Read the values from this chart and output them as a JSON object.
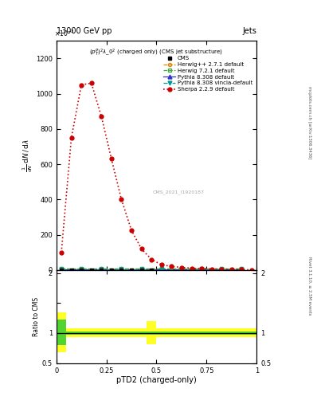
{
  "title_top": "13000 GeV pp",
  "title_right": "Jets",
  "subtitle": "$(p_T^P)^2\\lambda\\_0^2$ (charged only) (CMS jet substructure)",
  "watermark": "CMS_2021_I1920187",
  "ylabel_ratio": "Ratio to CMS",
  "xlabel": "pTD2 (charged-only)",
  "ylim_main": [
    0,
    1300
  ],
  "ylim_ratio": [
    0.5,
    2.05
  ],
  "xlim": [
    0.0,
    1.0
  ],
  "sherpa_x": [
    0.025,
    0.075,
    0.125,
    0.175,
    0.225,
    0.275,
    0.325,
    0.375,
    0.425,
    0.475,
    0.525,
    0.575,
    0.625,
    0.675,
    0.725,
    0.775,
    0.825,
    0.875,
    0.925,
    0.975
  ],
  "sherpa_y": [
    100,
    750,
    1050,
    1060,
    870,
    630,
    400,
    225,
    120,
    60,
    30,
    20,
    15,
    10,
    8,
    6,
    4,
    3,
    2,
    1
  ],
  "sherpa_color": "#cc0000",
  "sherpa_label": "Sherpa 2.2.9 default",
  "herwig_x": [
    0.025,
    0.125,
    0.225,
    0.325,
    0.425,
    0.525,
    0.625,
    0.725,
    0.825,
    0.925
  ],
  "herwig_y": [
    8,
    8,
    8,
    8,
    8,
    8,
    8,
    8,
    8,
    8
  ],
  "herwig_color": "#dd8800",
  "herwig_label": "Herwig++ 2.7.1 default",
  "herwig7_x": [
    0.025,
    0.125,
    0.225,
    0.325,
    0.425,
    0.525,
    0.625,
    0.725,
    0.825,
    0.925
  ],
  "herwig7_y": [
    8,
    8,
    8,
    8,
    8,
    8,
    8,
    8,
    8,
    8
  ],
  "herwig7_color": "#44aa44",
  "herwig7_label": "Herwig 7.2.1 default",
  "pythia_x": [
    0.025,
    0.125,
    0.225,
    0.325,
    0.425,
    0.525,
    0.625,
    0.725,
    0.825,
    0.925
  ],
  "pythia_y": [
    5,
    5,
    5,
    5,
    5,
    5,
    5,
    5,
    5,
    5
  ],
  "pythia_color": "#3333cc",
  "pythia_label": "Pythia 8.308 default",
  "pythia_v_x": [
    0.025,
    0.125,
    0.225,
    0.325,
    0.425,
    0.525,
    0.625,
    0.725,
    0.825,
    0.925
  ],
  "pythia_v_y": [
    5,
    5,
    5,
    5,
    5,
    5,
    5,
    5,
    5,
    5
  ],
  "pythia_v_color": "#009999",
  "pythia_v_label": "Pythia 8.308 vincia-default",
  "cms_x": [
    0.025,
    0.075,
    0.125,
    0.175,
    0.225,
    0.275,
    0.325,
    0.375,
    0.425,
    0.475
  ],
  "cms_y": [
    0,
    0,
    0,
    0,
    0,
    0,
    0,
    0,
    0,
    0
  ],
  "cms_color": "#000000",
  "cms_label": "CMS",
  "ratio_band_yellow_x": [
    0.0,
    0.05,
    0.1,
    0.15,
    0.2,
    0.25,
    0.3,
    0.35,
    0.4,
    0.45,
    0.5,
    0.55,
    0.6,
    0.65,
    0.7,
    0.75,
    0.8,
    0.85,
    0.9,
    0.95,
    1.0
  ],
  "ratio_band_yellow_lo": [
    0.68,
    0.68,
    0.93,
    0.93,
    0.93,
    0.93,
    0.93,
    0.93,
    0.93,
    0.93,
    0.82,
    0.93,
    0.93,
    0.93,
    0.93,
    0.93,
    0.93,
    0.93,
    0.93,
    0.93,
    0.93
  ],
  "ratio_band_yellow_hi": [
    1.35,
    1.35,
    1.08,
    1.08,
    1.08,
    1.08,
    1.08,
    1.08,
    1.08,
    1.08,
    1.2,
    1.08,
    1.08,
    1.08,
    1.08,
    1.08,
    1.08,
    1.08,
    1.08,
    1.08,
    1.08
  ],
  "ratio_band_green_x": [
    0.0,
    0.05,
    0.1,
    0.15,
    0.2,
    0.3,
    0.4,
    0.5,
    0.6,
    0.7,
    0.8,
    0.9,
    1.0
  ],
  "ratio_band_green_lo": [
    0.8,
    0.8,
    0.97,
    0.97,
    0.97,
    0.97,
    0.97,
    0.97,
    0.97,
    0.97,
    0.97,
    0.97,
    0.97
  ],
  "ratio_band_green_hi": [
    1.22,
    1.22,
    1.03,
    1.03,
    1.03,
    1.03,
    1.03,
    1.03,
    1.03,
    1.03,
    1.03,
    1.03,
    1.03
  ],
  "bg_color": "#ffffff"
}
